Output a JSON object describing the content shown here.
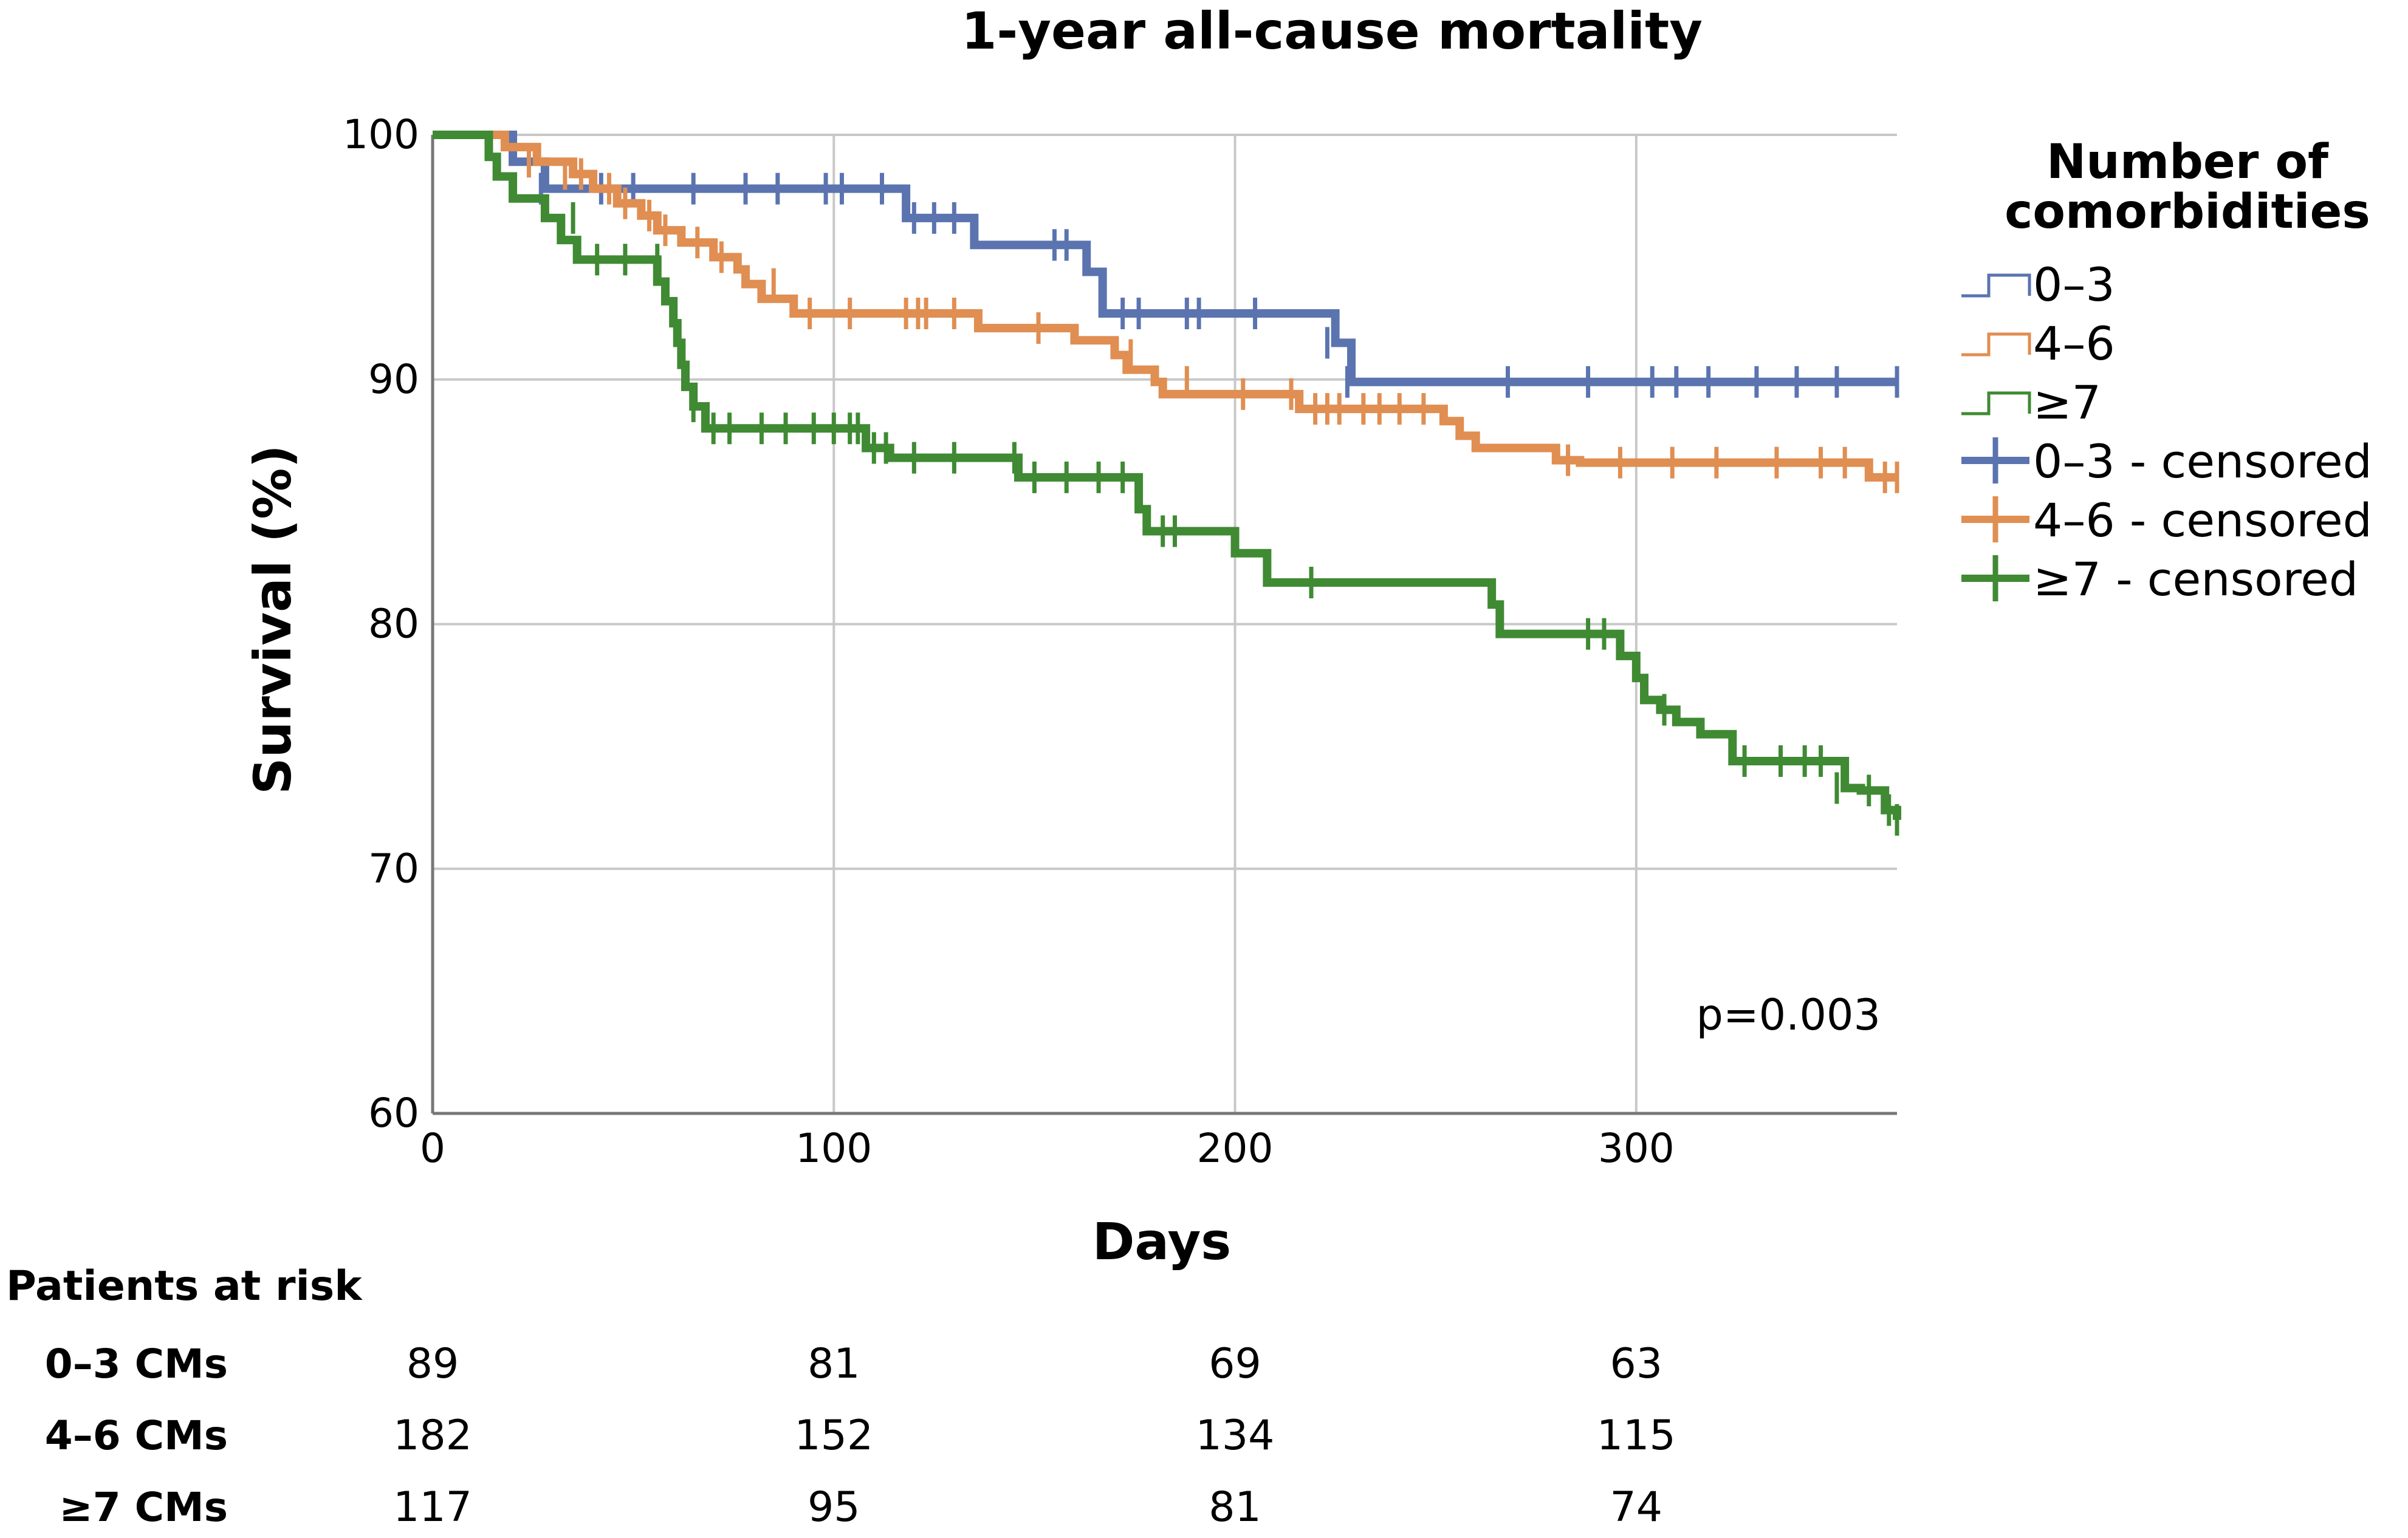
{
  "chart_data": {
    "type": "line",
    "subtype": "kaplan-meier",
    "title": "1-year all-cause mortality",
    "xlabel": "Days",
    "ylabel": "Survival (%)",
    "xlim": [
      0,
      365
    ],
    "ylim": [
      60,
      100
    ],
    "xticks": [
      0,
      100,
      200,
      300
    ],
    "yticks": [
      60,
      70,
      80,
      90,
      100
    ],
    "grid": true,
    "annotation": "p=0.003",
    "legend": {
      "title_lines": [
        "Number of",
        "comorbidities"
      ],
      "placement": "right",
      "entries": [
        {
          "label": "0–3",
          "kind": "step",
          "color": "#5b74b0"
        },
        {
          "label": "4–6",
          "kind": "step",
          "color": "#e08e52"
        },
        {
          "label": "≥7",
          "kind": "step",
          "color": "#3f8a33"
        },
        {
          "label": "0–3 - censored",
          "kind": "censor",
          "color": "#5b74b0"
        },
        {
          "label": "4–6 - censored",
          "kind": "censor",
          "color": "#e08e52"
        },
        {
          "label": "≥7 - censored",
          "kind": "censor",
          "color": "#3f8a33"
        }
      ]
    },
    "series": [
      {
        "name": "0–3",
        "color": "#5b74b0",
        "steps": [
          [
            0,
            100
          ],
          [
            20,
            98.9
          ],
          [
            28,
            97.8
          ],
          [
            118,
            96.6
          ],
          [
            135,
            95.5
          ],
          [
            163,
            94.4
          ],
          [
            167,
            92.7
          ],
          [
            225,
            91.5
          ],
          [
            229,
            89.9
          ],
          [
            365,
            89.9
          ]
        ],
        "censored": [
          [
            27,
            97.8
          ],
          [
            42,
            97.8
          ],
          [
            50,
            97.8
          ],
          [
            65,
            97.8
          ],
          [
            78,
            97.8
          ],
          [
            86,
            97.8
          ],
          [
            98,
            97.8
          ],
          [
            102,
            97.8
          ],
          [
            112,
            97.8
          ],
          [
            120,
            96.6
          ],
          [
            125,
            96.6
          ],
          [
            130,
            96.6
          ],
          [
            155,
            95.5
          ],
          [
            158,
            95.5
          ],
          [
            172,
            92.7
          ],
          [
            176,
            92.7
          ],
          [
            188,
            92.7
          ],
          [
            191,
            92.7
          ],
          [
            205,
            92.7
          ],
          [
            223,
            91.5
          ],
          [
            228,
            89.9
          ],
          [
            268,
            89.9
          ],
          [
            288,
            89.9
          ],
          [
            304,
            89.9
          ],
          [
            310,
            89.9
          ],
          [
            318,
            89.9
          ],
          [
            330,
            89.9
          ],
          [
            340,
            89.9
          ],
          [
            350,
            89.9
          ],
          [
            365,
            89.9
          ]
        ]
      },
      {
        "name": "4–6",
        "color": "#e08e52",
        "steps": [
          [
            0,
            100
          ],
          [
            18,
            99.5
          ],
          [
            26,
            98.9
          ],
          [
            35,
            98.4
          ],
          [
            40,
            97.8
          ],
          [
            46,
            97.2
          ],
          [
            52,
            96.7
          ],
          [
            56,
            96.1
          ],
          [
            62,
            95.6
          ],
          [
            70,
            95.0
          ],
          [
            76,
            94.5
          ],
          [
            78,
            93.9
          ],
          [
            82,
            93.3
          ],
          [
            90,
            92.7
          ],
          [
            136,
            92.1
          ],
          [
            160,
            91.6
          ],
          [
            170,
            91.0
          ],
          [
            173,
            90.4
          ],
          [
            180,
            89.9
          ],
          [
            182,
            89.4
          ],
          [
            216,
            88.8
          ],
          [
            252,
            88.3
          ],
          [
            256,
            87.7
          ],
          [
            260,
            87.2
          ],
          [
            280,
            86.7
          ],
          [
            286,
            86.6
          ],
          [
            358,
            86.0
          ],
          [
            365,
            86.0
          ]
        ],
        "censored": [
          [
            24,
            98.9
          ],
          [
            33,
            98.4
          ],
          [
            37,
            98.4
          ],
          [
            44,
            97.8
          ],
          [
            48,
            97.2
          ],
          [
            54,
            96.7
          ],
          [
            58,
            96.1
          ],
          [
            66,
            95.6
          ],
          [
            72,
            95.0
          ],
          [
            85,
            93.9
          ],
          [
            94,
            92.7
          ],
          [
            104,
            92.7
          ],
          [
            118,
            92.7
          ],
          [
            121,
            92.7
          ],
          [
            123,
            92.7
          ],
          [
            130,
            92.7
          ],
          [
            151,
            92.1
          ],
          [
            174,
            91.0
          ],
          [
            188,
            89.9
          ],
          [
            202,
            89.4
          ],
          [
            214,
            89.4
          ],
          [
            220,
            88.8
          ],
          [
            223,
            88.8
          ],
          [
            226,
            88.8
          ],
          [
            232,
            88.8
          ],
          [
            236,
            88.8
          ],
          [
            241,
            88.8
          ],
          [
            247,
            88.8
          ],
          [
            283,
            86.7
          ],
          [
            296,
            86.6
          ],
          [
            309,
            86.6
          ],
          [
            320,
            86.6
          ],
          [
            335,
            86.6
          ],
          [
            346,
            86.6
          ],
          [
            352,
            86.6
          ],
          [
            362,
            86.0
          ],
          [
            365,
            86.0
          ]
        ]
      },
      {
        "name": "≥7",
        "color": "#3f8a33",
        "steps": [
          [
            0,
            100
          ],
          [
            14,
            99.1
          ],
          [
            16,
            98.3
          ],
          [
            20,
            97.4
          ],
          [
            28,
            96.6
          ],
          [
            32,
            95.7
          ],
          [
            36,
            94.9
          ],
          [
            56,
            94.0
          ],
          [
            58,
            93.2
          ],
          [
            60,
            92.3
          ],
          [
            61,
            91.5
          ],
          [
            62,
            90.6
          ],
          [
            63,
            89.7
          ],
          [
            65,
            88.9
          ],
          [
            68,
            88.0
          ],
          [
            108,
            87.2
          ],
          [
            114,
            86.8
          ],
          [
            146,
            86.0
          ],
          [
            176,
            84.7
          ],
          [
            178,
            83.8
          ],
          [
            200,
            82.9
          ],
          [
            208,
            81.7
          ],
          [
            264,
            80.8
          ],
          [
            266,
            79.6
          ],
          [
            296,
            78.7
          ],
          [
            300,
            77.8
          ],
          [
            302,
            76.9
          ],
          [
            306,
            76.5
          ],
          [
            310,
            76.0
          ],
          [
            316,
            75.5
          ],
          [
            324,
            74.4
          ],
          [
            352,
            73.3
          ],
          [
            356,
            73.2
          ],
          [
            362,
            72.4
          ],
          [
            365,
            72.0
          ]
        ],
        "censored": [
          [
            35,
            96.6
          ],
          [
            41,
            94.9
          ],
          [
            48,
            94.9
          ],
          [
            56,
            94.9
          ],
          [
            65,
            88.9
          ],
          [
            70,
            88.0
          ],
          [
            74,
            88.0
          ],
          [
            82,
            88.0
          ],
          [
            88,
            88.0
          ],
          [
            95,
            88.0
          ],
          [
            100,
            88.0
          ],
          [
            104,
            88.0
          ],
          [
            106,
            88.0
          ],
          [
            110,
            87.2
          ],
          [
            113,
            87.2
          ],
          [
            120,
            86.8
          ],
          [
            130,
            86.8
          ],
          [
            145,
            86.8
          ],
          [
            150,
            86.0
          ],
          [
            158,
            86.0
          ],
          [
            166,
            86.0
          ],
          [
            172,
            86.0
          ],
          [
            182,
            83.8
          ],
          [
            185,
            83.8
          ],
          [
            219,
            81.7
          ],
          [
            288,
            79.6
          ],
          [
            292,
            79.6
          ],
          [
            307,
            76.5
          ],
          [
            327,
            74.4
          ],
          [
            336,
            74.4
          ],
          [
            342,
            74.4
          ],
          [
            346,
            74.4
          ],
          [
            350,
            73.3
          ],
          [
            358,
            73.2
          ],
          [
            363,
            72.4
          ],
          [
            365,
            72.0
          ]
        ]
      }
    ],
    "risk_table": {
      "title": "Patients at risk",
      "time_points": [
        0,
        100,
        200,
        300
      ],
      "rows": [
        {
          "label": "0–3 CMs",
          "values": [
            "89",
            "81",
            "69",
            "63"
          ]
        },
        {
          "label": "4–6 CMs",
          "values": [
            "182",
            "152",
            "134",
            "115"
          ]
        },
        {
          "label": "≥7 CMs",
          "values": [
            "117",
            "95",
            "81",
            "74"
          ]
        }
      ]
    }
  }
}
